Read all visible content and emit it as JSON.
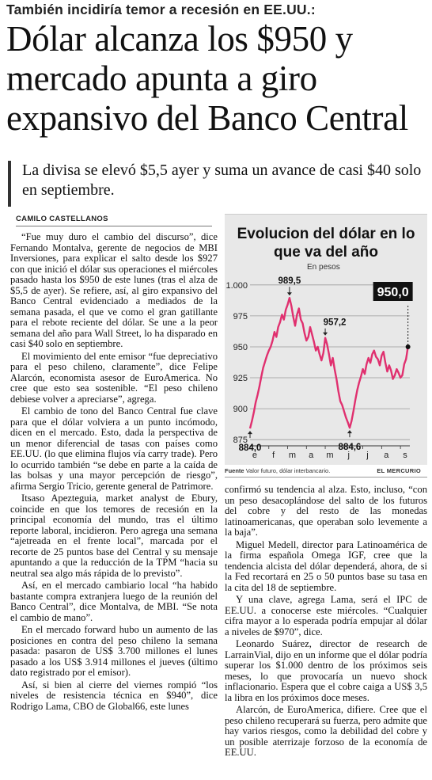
{
  "article": {
    "kicker": "También incidiría temor a recesión en EE.UU.:",
    "headline": "Dólar alcanza los $950 y mercado apunta a giro expansivo del Banco Central",
    "deck": "La divisa se elevó $5,5 ayer y suma un avance de casi $40 solo en septiembre.",
    "byline": "CAMILO CASTELLANOS"
  },
  "body_left": [
    "“Fue muy duro el cambio del discurso”, dice Fernando Montalva, gerente de negocios de MBI Inversiones, para explicar el salto desde los $927 con que inició el dólar sus operaciones el miércoles pasado hasta los $950 de este lunes (tras el alza de $5,5 de ayer). Se refiere, así, al giro expansivo del Banco Central evidenciado a mediados de la semana pasada, el que ve como el gran gatillante para el rebote reciente del dólar. Se une a la peor semana del año para Wall Street, lo ha disparado en casi $40 solo en septiembre.",
    "El movimiento del ente emisor “fue depreciativo para el peso chileno, claramente”, dice Felipe Alarcón, economista asesor de EuroAmerica. No cree que esto sea sostenible. “El peso chileno debiese volver a apreciarse”, agrega.",
    "El cambio de tono del Banco Central fue clave para que el dólar volviera a un punto incómodo, dicen en el mercado. Esto, dada la perspectiva de un menor diferencial de tasas con países como EE.UU. (lo que elimina flujos vía carry trade). Pero lo ocurrido también “se debe en parte a la caída de las bolsas y una mayor percepción de riesgo”, afirma Sergio Tricio, gerente general de Patrimore.",
    "Itsaso Apezteguia, market analyst de Ebury, coincide en que los temores de recesión en la principal economía del mundo, tras el último reporte laboral, incidieron. Pero agrega una semana “ajetreada en el frente local”, marcada por el recorte de 25 puntos base del Central y su mensaje apuntando a que la reducción de la TPM “hacia su neutral sea algo más rápida de lo previsto”.",
    "Así, en el mercado cambiario local “ha habido bastante compra extranjera luego de la reunión del Banco Central”, dice Montalva, de MBI. “Se nota el cambio de mano”.",
    "En el mercado forward hubo un aumento de las posiciones en contra del peso chileno la semana pasada: pasaron de US$ 3.700 millones el lunes pasado a los US$ 3.914 millones el jueves (último dato registrado por el emisor).",
    "Así, si bien al cierre del viernes rompió “los niveles de resistencia técnica en $940”, dice Rodrigo Lama, CBO de Global66, este lunes"
  ],
  "body_right": [
    "confirmó su tendencia al alza. Esto, incluso, “con un peso desacoplándose del salto de los futuros del cobre y del resto de las monedas latinoamericanas, que operaban solo levemente a la baja”.",
    "Miguel Medell, director para Latinoamérica de la firma española Omega IGF, cree que la tendencia alcista del dólar dependerá, ahora, de si la Fed recortará en 25 o 50 puntos base su tasa en la cita del 18 de septiembre.",
    "Y una clave, agrega Lama, será el IPC de EE.UU. a conocerse este miércoles. “Cualquier cifra mayor a lo esperada podría empujar al dólar a niveles de $970”, dice.",
    "Leonardo Suárez, director de research de LarrainVial, dijo en un informe que el dólar podría superar los $1.000 dentro de los próximos seis meses, lo que provocaría un nuevo shock inflacionario. Espera que el cobre caiga a US$ 3,5 la libra en los próximos doce meses.",
    "Alarcón, de EuroAmerica, difiere. Cree que el peso chileno recuperará su fuerza, pero admite que hay varios riesgos, como la debilidad del cobre y un posible aterrizaje forzoso de la economía de EE.UU."
  ],
  "chart_data": {
    "type": "line",
    "title": "Evolucion del dólar en lo que va del año",
    "unit_label": "En pesos",
    "source_label": "Fuente",
    "source_text": "Valor futuro, dólar interbancario.",
    "publisher": "EL MERCURIO",
    "x_ticks": [
      "e",
      "f",
      "m",
      "a",
      "m",
      "j",
      "j",
      "a",
      "s"
    ],
    "y_ticks": [
      "1.000",
      "975",
      "950",
      "925",
      "900",
      "875"
    ],
    "ylim": [
      870,
      1005
    ],
    "x": [
      0,
      0.1,
      0.2,
      0.3,
      0.4,
      0.5,
      0.6,
      0.7,
      0.8,
      0.9,
      1.0,
      1.1,
      1.2,
      1.3,
      1.4,
      1.5,
      1.6,
      1.7,
      1.8,
      1.9,
      2.0,
      2.1,
      2.2,
      2.3,
      2.4,
      2.5,
      2.6,
      2.7,
      2.8,
      2.9,
      3.0,
      3.1,
      3.2,
      3.3,
      3.4,
      3.5,
      3.6,
      3.7,
      3.8,
      3.9,
      4.0,
      4.1,
      4.2,
      4.3,
      4.4,
      4.5,
      4.6,
      4.7,
      4.8,
      4.9,
      5.0,
      5.1,
      5.2,
      5.3,
      5.4,
      5.5,
      5.6,
      5.7,
      5.8,
      5.9,
      6.0,
      6.1,
      6.2,
      6.3,
      6.4,
      6.5,
      6.6,
      6.7,
      6.8,
      6.9,
      7.0,
      7.1,
      7.2,
      7.3,
      7.4,
      7.5,
      7.6,
      7.7,
      7.8,
      7.9,
      8.0,
      8.1,
      8.2,
      8.3,
      8.4
    ],
    "y": [
      884.0,
      890,
      897,
      905,
      911,
      918,
      926,
      933,
      938,
      943,
      947,
      950,
      955,
      962,
      958,
      966,
      970,
      976,
      972,
      980,
      984,
      989.5,
      983,
      974,
      967,
      976,
      981,
      972,
      969,
      961,
      955,
      958,
      966,
      960,
      954,
      947,
      950,
      944,
      939,
      945,
      957.2,
      952,
      944,
      935,
      941,
      932,
      924,
      914,
      906,
      903,
      898,
      893,
      889,
      884.6,
      890,
      898,
      907,
      915,
      921,
      926,
      932,
      928,
      936,
      941,
      937,
      944,
      947,
      942,
      940,
      935,
      943,
      946,
      937,
      930,
      935,
      931,
      924,
      927,
      932,
      929,
      925,
      927,
      936,
      940,
      950.0
    ],
    "annotations": [
      {
        "label": "989,5",
        "value": 989.5
      },
      {
        "label": "957,2",
        "value": 957.2
      },
      {
        "label": "884,0",
        "value": 884.0
      },
      {
        "label": "884,6",
        "value": 884.6
      }
    ],
    "highlight_value": "950,0"
  }
}
